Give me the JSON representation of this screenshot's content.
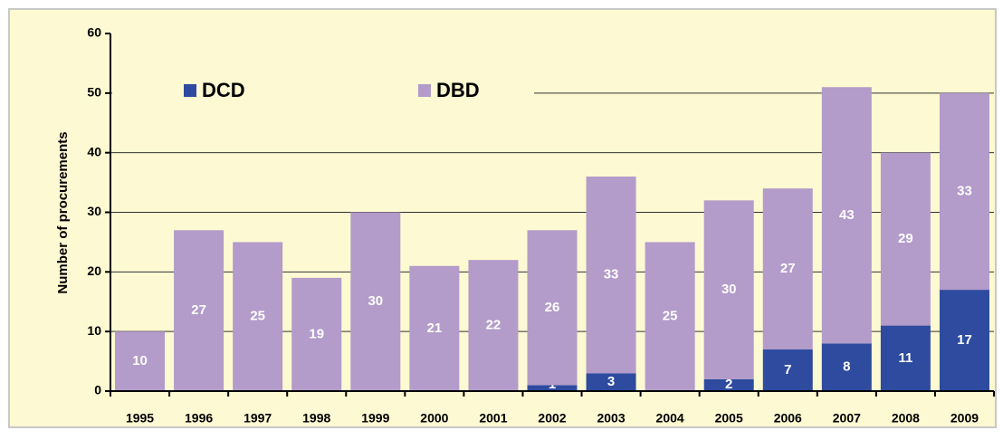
{
  "chart_data": {
    "type": "stacked_bar",
    "ylabel": "Number of procurements",
    "categories": [
      "1995",
      "1996",
      "1997",
      "1998",
      "1999",
      "2000",
      "2001",
      "2002",
      "2003",
      "2004",
      "2005",
      "2006",
      "2007",
      "2008",
      "2009"
    ],
    "series": [
      {
        "name": "DCD",
        "color": "#2e4b9f",
        "values": [
          0,
          0,
          0,
          0,
          0,
          0,
          0,
          1,
          3,
          0,
          2,
          7,
          8,
          11,
          17
        ]
      },
      {
        "name": "DBD",
        "color": "#b39bca",
        "values": [
          10,
          27,
          25,
          19,
          30,
          21,
          22,
          26,
          33,
          25,
          30,
          27,
          43,
          29,
          33
        ]
      }
    ],
    "ylim": [
      0,
      60
    ],
    "yticks": [
      0,
      10,
      20,
      30,
      40,
      50,
      60
    ],
    "grid": true,
    "legend": "top-left"
  }
}
